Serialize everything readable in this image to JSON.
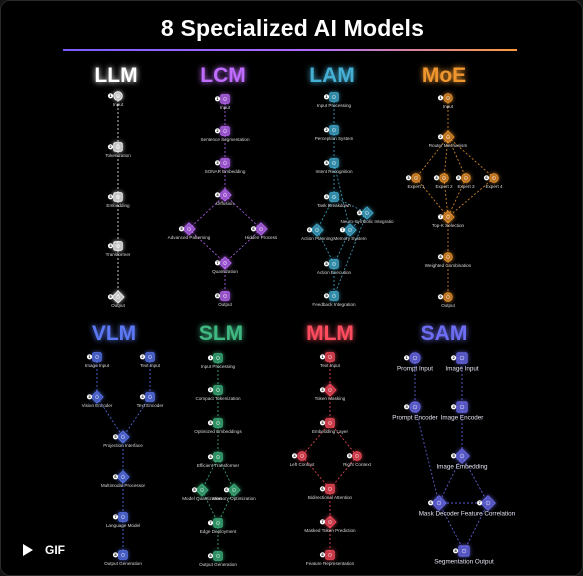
{
  "title": "8 Specialized AI Models",
  "gif_label": "GIF",
  "panels": [
    {
      "name": "LLM",
      "color": "#ffffff",
      "nodes": [
        {
          "id": "input",
          "label": "Input",
          "num": 1,
          "icon": "circle"
        },
        {
          "id": "tokenization",
          "label": "Tokenization",
          "num": 2,
          "icon": "square"
        },
        {
          "id": "embedding",
          "label": "Embedding",
          "num": 3,
          "icon": "square"
        },
        {
          "id": "transformer",
          "label": "Transformer",
          "num": 4,
          "icon": "square"
        },
        {
          "id": "output",
          "label": "Output",
          "num": 5,
          "icon": "diamond"
        }
      ],
      "edges": [
        [
          "input",
          "tokenization"
        ],
        [
          "tokenization",
          "embedding"
        ],
        [
          "embedding",
          "transformer"
        ],
        [
          "transformer",
          "output"
        ]
      ]
    },
    {
      "name": "LCM",
      "color": "#c06cff",
      "nodes": [
        {
          "id": "input",
          "label": "Input",
          "num": 1,
          "icon": "square"
        },
        {
          "id": "sentence_segmentation",
          "label": "Sentence Segmentation",
          "num": 2,
          "icon": "square"
        },
        {
          "id": "sonar_embedding",
          "label": "SONAR Embedding",
          "num": 3,
          "icon": "square"
        },
        {
          "id": "diffusion",
          "label": "Diffusion",
          "num": 4,
          "icon": "diamond"
        },
        {
          "id": "advanced_patterning",
          "label": "Advanced Patterning",
          "num": 5,
          "icon": "diamond"
        },
        {
          "id": "hidden_process",
          "label": "Hidden Process",
          "num": 6,
          "icon": "diamond"
        },
        {
          "id": "quantization",
          "label": "Quantization",
          "num": 7,
          "icon": "diamond"
        },
        {
          "id": "output",
          "label": "Output",
          "num": 8,
          "icon": "square"
        }
      ],
      "edges": [
        [
          "input",
          "sentence_segmentation"
        ],
        [
          "sentence_segmentation",
          "sonar_embedding"
        ],
        [
          "sonar_embedding",
          "diffusion"
        ],
        [
          "diffusion",
          "advanced_patterning"
        ],
        [
          "diffusion",
          "hidden_process"
        ],
        [
          "advanced_patterning",
          "quantization"
        ],
        [
          "hidden_process",
          "quantization"
        ],
        [
          "quantization",
          "output"
        ]
      ]
    },
    {
      "name": "LAM",
      "color": "#44b0d4",
      "nodes": [
        {
          "id": "input_processing",
          "label": "Input Processing",
          "num": 1,
          "icon": "square"
        },
        {
          "id": "perception_system",
          "label": "Perception System",
          "num": 2,
          "icon": "square"
        },
        {
          "id": "intent_recognition",
          "label": "Intent Recognition",
          "num": 3,
          "icon": "square"
        },
        {
          "id": "task_breakdown",
          "label": "Task Breakdown",
          "num": 4,
          "icon": "square"
        },
        {
          "id": "neuro_symbolic",
          "label": "Neuro-Symbolic Integratio",
          "num": 5,
          "icon": "diamond"
        },
        {
          "id": "action_planning",
          "label": "Action Planning",
          "num": 6,
          "icon": "diamond"
        },
        {
          "id": "memory_system",
          "label": "Memory System",
          "num": 7,
          "icon": "diamond"
        },
        {
          "id": "action_execution",
          "label": "Action Execution",
          "num": 8,
          "icon": "square"
        },
        {
          "id": "feedback_integration",
          "label": "Feedback Integration",
          "num": 9,
          "icon": "square"
        }
      ],
      "edges": [
        [
          "input_processing",
          "perception_system"
        ],
        [
          "perception_system",
          "intent_recognition"
        ],
        [
          "intent_recognition",
          "task_breakdown"
        ],
        [
          "task_breakdown",
          "neuro_symbolic"
        ],
        [
          "task_breakdown",
          "action_planning"
        ],
        [
          "neuro_symbolic",
          "memory_system"
        ],
        [
          "intent_recognition",
          "memory_system"
        ],
        [
          "action_planning",
          "action_execution"
        ],
        [
          "memory_system",
          "action_execution"
        ],
        [
          "action_execution",
          "feedback_integration"
        ],
        [
          "feedback_integration",
          "neuro_symbolic"
        ]
      ]
    },
    {
      "name": "MoE",
      "color": "#f0962e",
      "nodes": [
        {
          "id": "input",
          "label": "Input",
          "num": 1,
          "icon": "circle"
        },
        {
          "id": "router",
          "label": "Router Mechanism",
          "num": 2,
          "icon": "diamond"
        },
        {
          "id": "expert1",
          "label": "Expert 1",
          "num": 3,
          "icon": "circle"
        },
        {
          "id": "expert2",
          "label": "Expert 2",
          "num": 4,
          "icon": "circle"
        },
        {
          "id": "expert3",
          "label": "Expert 3",
          "num": 5,
          "icon": "circle"
        },
        {
          "id": "expert4",
          "label": "Expert 4",
          "num": 6,
          "icon": "circle"
        },
        {
          "id": "topk",
          "label": "Top-K Selection",
          "num": 7,
          "icon": "diamond"
        },
        {
          "id": "weighted",
          "label": "Weighted Combination",
          "num": 8,
          "icon": "circle"
        },
        {
          "id": "output",
          "label": "Output",
          "num": 9,
          "icon": "circle"
        }
      ],
      "edges": [
        [
          "input",
          "router"
        ],
        [
          "router",
          "expert1"
        ],
        [
          "router",
          "expert2"
        ],
        [
          "router",
          "expert3"
        ],
        [
          "router",
          "expert4"
        ],
        [
          "expert1",
          "topk"
        ],
        [
          "expert2",
          "topk"
        ],
        [
          "expert3",
          "topk"
        ],
        [
          "expert4",
          "topk"
        ],
        [
          "topk",
          "weighted"
        ],
        [
          "weighted",
          "output"
        ]
      ]
    },
    {
      "name": "VLM",
      "color": "#5b78f5",
      "nodes": [
        {
          "id": "image_input",
          "label": "Image Input",
          "num": 1,
          "icon": "square"
        },
        {
          "id": "text_input",
          "label": "Text Input",
          "num": 2,
          "icon": "square"
        },
        {
          "id": "vision_encoder",
          "label": "Vision Encoder",
          "num": 3,
          "icon": "diamond"
        },
        {
          "id": "text_encoder",
          "label": "Text Encoder",
          "num": 4,
          "icon": "square"
        },
        {
          "id": "projection_interface",
          "label": "Projection Interface",
          "num": 5,
          "icon": "diamond"
        },
        {
          "id": "multimodal_processor",
          "label": "Multimodal Processor",
          "num": 6,
          "icon": "diamond"
        },
        {
          "id": "language_model",
          "label": "Language Model",
          "num": 7,
          "icon": "square"
        },
        {
          "id": "output_generation",
          "label": "Output Generation",
          "num": 8,
          "icon": "square"
        }
      ],
      "edges": [
        [
          "image_input",
          "vision_encoder"
        ],
        [
          "text_input",
          "text_encoder"
        ],
        [
          "vision_encoder",
          "projection_interface"
        ],
        [
          "text_encoder",
          "projection_interface"
        ],
        [
          "projection_interface",
          "multimodal_processor"
        ],
        [
          "multimodal_processor",
          "language_model"
        ],
        [
          "language_model",
          "output_generation"
        ]
      ]
    },
    {
      "name": "SLM",
      "color": "#3fb882",
      "nodes": [
        {
          "id": "input_processing",
          "label": "Input Processing",
          "num": 1,
          "icon": "square"
        },
        {
          "id": "compact_tokenization",
          "label": "Compact Tokenization",
          "num": 2,
          "icon": "square"
        },
        {
          "id": "optimized_embeddings",
          "label": "Optimized Embeddings",
          "num": 3,
          "icon": "square"
        },
        {
          "id": "efficient_transformer",
          "label": "Efficient Transformer",
          "num": 4,
          "icon": "square"
        },
        {
          "id": "model_quantization",
          "label": "Model Quantization",
          "num": 5,
          "icon": "diamond"
        },
        {
          "id": "memory_optimization",
          "label": "Memory Optimization",
          "num": 6,
          "icon": "diamond"
        },
        {
          "id": "edge_deployment",
          "label": "Edge Deployment",
          "num": 7,
          "icon": "square"
        },
        {
          "id": "output_generation",
          "label": "Output Generation",
          "num": 8,
          "icon": "square"
        }
      ],
      "edges": [
        [
          "input_processing",
          "compact_tokenization"
        ],
        [
          "compact_tokenization",
          "optimized_embeddings"
        ],
        [
          "optimized_embeddings",
          "efficient_transformer"
        ],
        [
          "efficient_transformer",
          "model_quantization"
        ],
        [
          "efficient_transformer",
          "memory_optimization"
        ],
        [
          "model_quantization",
          "edge_deployment"
        ],
        [
          "memory_optimization",
          "edge_deployment"
        ],
        [
          "edge_deployment",
          "output_generation"
        ]
      ]
    },
    {
      "name": "MLM",
      "color": "#ff4d5e",
      "nodes": [
        {
          "id": "text_input",
          "label": "Text Input",
          "num": 1,
          "icon": "square"
        },
        {
          "id": "token_masking",
          "label": "Token Masking",
          "num": 2,
          "icon": "diamond"
        },
        {
          "id": "embedding_layer",
          "label": "Embedding Layer",
          "num": 3,
          "icon": "square"
        },
        {
          "id": "left_context",
          "label": "Left Context",
          "num": 4,
          "icon": "circle"
        },
        {
          "id": "right_context",
          "label": "Right Context",
          "num": 5,
          "icon": "circle"
        },
        {
          "id": "bidirectional_attention",
          "label": "Bidirectional Attention",
          "num": 6,
          "icon": "square"
        },
        {
          "id": "masked_token_prediction",
          "label": "Masked Token Prediction",
          "num": 7,
          "icon": "diamond"
        },
        {
          "id": "feature_representation",
          "label": "Feature Representation",
          "num": 8,
          "icon": "square"
        }
      ],
      "edges": [
        [
          "text_input",
          "token_masking"
        ],
        [
          "token_masking",
          "embedding_layer"
        ],
        [
          "embedding_layer",
          "left_context"
        ],
        [
          "embedding_layer",
          "right_context"
        ],
        [
          "left_context",
          "bidirectional_attention"
        ],
        [
          "right_context",
          "bidirectional_attention"
        ],
        [
          "bidirectional_attention",
          "masked_token_prediction"
        ],
        [
          "masked_token_prediction",
          "feature_representation"
        ]
      ]
    },
    {
      "name": "SAM",
      "color": "#6e6ef5",
      "nodes": [
        {
          "id": "prompt_input",
          "label": "Prompt Input",
          "num": 1,
          "icon": "circle"
        },
        {
          "id": "image_input",
          "label": "Image Input",
          "num": 2,
          "icon": "square"
        },
        {
          "id": "prompt_encoder",
          "label": "Prompt Encoder",
          "num": 3,
          "icon": "circle"
        },
        {
          "id": "image_encoder",
          "label": "Image Encoder",
          "num": 4,
          "icon": "square"
        },
        {
          "id": "image_embedding",
          "label": "Image Embedding",
          "num": 5,
          "icon": "diamond"
        },
        {
          "id": "mask_decoder",
          "label": "Mask Decoder",
          "num": 6,
          "icon": "diamond"
        },
        {
          "id": "feature_correlation",
          "label": "Feature Correlation",
          "num": 7,
          "icon": "diamond"
        },
        {
          "id": "segmentation_output",
          "label": "Segmentation Output",
          "num": 8,
          "icon": "square"
        }
      ],
      "edges": [
        [
          "prompt_input",
          "prompt_encoder"
        ],
        [
          "image_input",
          "image_encoder"
        ],
        [
          "image_encoder",
          "image_embedding"
        ],
        [
          "prompt_encoder",
          "mask_decoder"
        ],
        [
          "image_embedding",
          "mask_decoder"
        ],
        [
          "image_embedding",
          "feature_correlation"
        ],
        [
          "mask_decoder",
          "feature_correlation"
        ],
        [
          "mask_decoder",
          "segmentation_output"
        ],
        [
          "feature_correlation",
          "segmentation_output"
        ]
      ]
    }
  ]
}
